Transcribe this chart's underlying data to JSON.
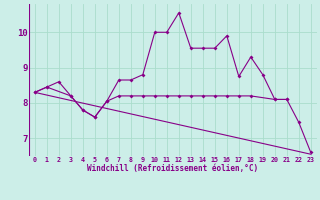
{
  "xlabel": "Windchill (Refroidissement éolien,°C)",
  "ylabel": "",
  "background_color": "#cceee8",
  "grid_color": "#aaddcc",
  "line_color": "#880088",
  "x_values": [
    0,
    1,
    2,
    3,
    4,
    5,
    6,
    7,
    8,
    9,
    10,
    11,
    12,
    13,
    14,
    15,
    16,
    17,
    18,
    19,
    20,
    21,
    22,
    23
  ],
  "series1": [
    8.3,
    8.45,
    8.6,
    8.2,
    7.8,
    7.6,
    8.05,
    8.65,
    8.65,
    8.8,
    10.0,
    10.0,
    10.55,
    9.55,
    9.55,
    9.55,
    9.9,
    8.75,
    9.3,
    8.8,
    8.1,
    8.1,
    7.45,
    6.6
  ],
  "series2_x": [
    0,
    1,
    3,
    4,
    5,
    6,
    7,
    8,
    9,
    10,
    11,
    12,
    13,
    14,
    15,
    16,
    17,
    18,
    20,
    21
  ],
  "series2_y": [
    8.3,
    8.45,
    8.2,
    7.8,
    7.6,
    8.05,
    8.2,
    8.2,
    8.2,
    8.2,
    8.2,
    8.2,
    8.2,
    8.2,
    8.2,
    8.2,
    8.2,
    8.2,
    8.1,
    8.1
  ],
  "series3_x": [
    0,
    23
  ],
  "series3_y": [
    8.3,
    6.55
  ],
  "ylim": [
    6.5,
    10.8
  ],
  "xlim": [
    -0.5,
    23.5
  ],
  "yticks": [
    7,
    8,
    9,
    10
  ],
  "xticks": [
    0,
    1,
    2,
    3,
    4,
    5,
    6,
    7,
    8,
    9,
    10,
    11,
    12,
    13,
    14,
    15,
    16,
    17,
    18,
    19,
    20,
    21,
    22,
    23
  ]
}
